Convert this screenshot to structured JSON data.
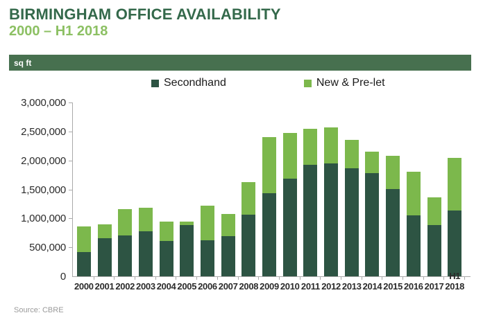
{
  "header": {
    "title": "BIRMINGHAM OFFICE AVAILABILITY",
    "subtitle": "2000 – H1 2018",
    "unit_label": "sq ft"
  },
  "source": "Source: CBRE",
  "colors": {
    "title": "#34694B",
    "subtitle": "#8CC063",
    "band": "#47704F",
    "secondhand": "#2D5443",
    "new_prelet": "#7CB84C",
    "axis": "#A9A9A9"
  },
  "chart_data": {
    "type": "bar",
    "stacked": true,
    "title": "Birmingham Office Availability 2000 – H1 2018",
    "xlabel": "",
    "ylabel": "sq ft",
    "ylim": [
      0,
      3000000
    ],
    "y_ticks": [
      0,
      500000,
      1000000,
      1500000,
      2000000,
      2500000,
      3000000
    ],
    "grid": false,
    "legend_position": "top",
    "categories": [
      "2000",
      "2001",
      "2002",
      "2003",
      "2004",
      "2005",
      "2006",
      "2007",
      "2008",
      "2009",
      "2010",
      "2011",
      "2012",
      "2013",
      "2014",
      "2015",
      "2016",
      "2017",
      "H1 2018"
    ],
    "series": [
      {
        "name": "Secondhand",
        "color": "#2D5443",
        "values": [
          420000,
          660000,
          710000,
          780000,
          610000,
          890000,
          620000,
          690000,
          1060000,
          1430000,
          1680000,
          1930000,
          1950000,
          1870000,
          1780000,
          1510000,
          1050000,
          880000,
          1140000
        ]
      },
      {
        "name": "New & Pre-let",
        "color": "#7CB84C",
        "values": [
          440000,
          240000,
          450000,
          400000,
          340000,
          50000,
          600000,
          390000,
          570000,
          970000,
          800000,
          620000,
          620000,
          480000,
          370000,
          570000,
          750000,
          480000,
          910000
        ]
      }
    ]
  }
}
